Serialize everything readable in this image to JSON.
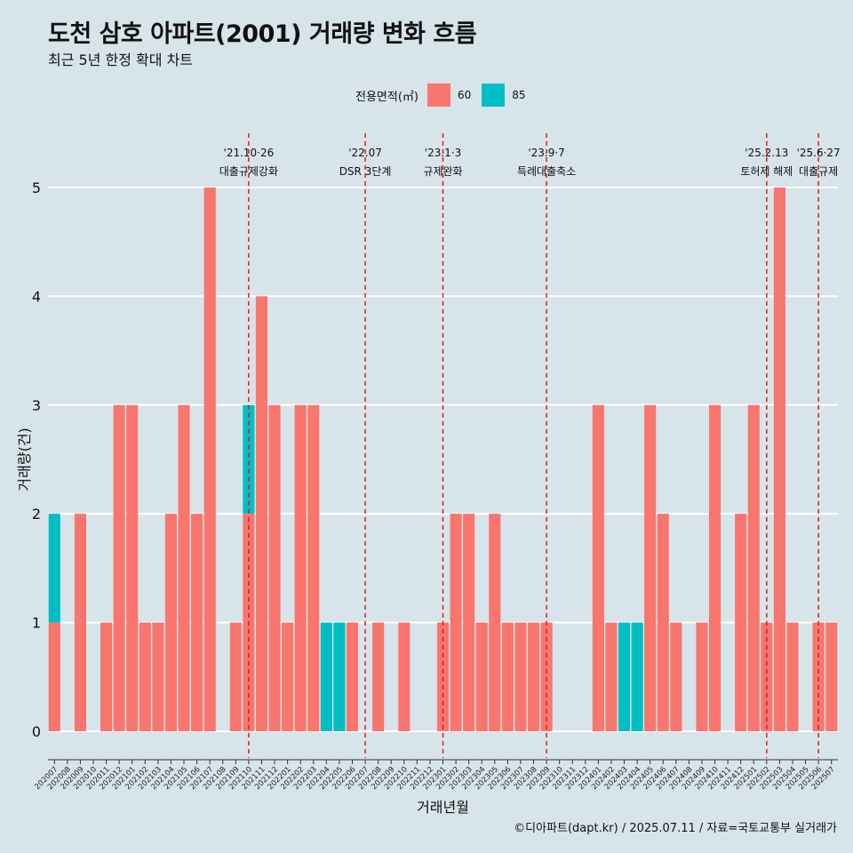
{
  "title": "도천 삼호 아파트(2001) 거래량 변화 흐름",
  "subtitle": "최근 5년 한정 확대 차트",
  "legend": {
    "title": "전용면적(㎡)",
    "items": [
      {
        "label": "60",
        "color": "#F8766D"
      },
      {
        "label": "85",
        "color": "#00BFC4"
      }
    ]
  },
  "caption": "©디아파트(dapt.kr) / 2025.07.11 / 자료=국토교통부 실거래가",
  "chart_data": {
    "type": "bar",
    "xlabel": "거래년월",
    "ylabel": "거래량(건)",
    "ylim": [
      0,
      5.5
    ],
    "yticks": [
      0,
      1,
      2,
      3,
      4,
      5
    ],
    "grid": true,
    "categories": [
      "202007",
      "202008",
      "202009",
      "202010",
      "202011",
      "202012",
      "202101",
      "202102",
      "202103",
      "202104",
      "202105",
      "202106",
      "202107",
      "202108",
      "202109",
      "202110",
      "202111",
      "202112",
      "202201",
      "202202",
      "202203",
      "202204",
      "202205",
      "202206",
      "202207",
      "202208",
      "202209",
      "202210",
      "202211",
      "202212",
      "202301",
      "202302",
      "202303",
      "202304",
      "202305",
      "202306",
      "202307",
      "202308",
      "202309",
      "202310",
      "202311",
      "202312",
      "202401",
      "202402",
      "202403",
      "202404",
      "202405",
      "202406",
      "202407",
      "202408",
      "202409",
      "202410",
      "202411",
      "202412",
      "202501",
      "202502",
      "202503",
      "202504",
      "202505",
      "202506",
      "202507"
    ],
    "series": [
      {
        "name": "60",
        "color": "#F8766D",
        "values": [
          1,
          0,
          2,
          0,
          1,
          3,
          3,
          1,
          1,
          2,
          3,
          2,
          5,
          0,
          1,
          2,
          4,
          3,
          1,
          3,
          3,
          0,
          0,
          1,
          0,
          1,
          0,
          1,
          0,
          0,
          1,
          2,
          2,
          1,
          2,
          1,
          1,
          1,
          1,
          0,
          0,
          0,
          3,
          1,
          0,
          0,
          3,
          2,
          1,
          0,
          1,
          3,
          0,
          2,
          3,
          1,
          5,
          1,
          0,
          1,
          1
        ]
      },
      {
        "name": "85",
        "color": "#00BFC4",
        "values": [
          1,
          0,
          0,
          0,
          0,
          0,
          0,
          0,
          0,
          0,
          0,
          0,
          0,
          0,
          0,
          1,
          0,
          0,
          0,
          0,
          0,
          1,
          1,
          0,
          0,
          0,
          0,
          0,
          0,
          0,
          0,
          0,
          0,
          0,
          0,
          0,
          0,
          0,
          0,
          0,
          0,
          0,
          0,
          0,
          1,
          1,
          0,
          0,
          0,
          0,
          0,
          0,
          0,
          0,
          0,
          0,
          0,
          0,
          0,
          0,
          0
        ]
      }
    ],
    "events": [
      {
        "month": "202110",
        "date": "'21.10·26",
        "label": "대출규제강화"
      },
      {
        "month": "202207",
        "date": "'22.07",
        "label": "DSR 3단계"
      },
      {
        "month": "202301",
        "date": "'23.1·3",
        "label": "규제완화"
      },
      {
        "month": "202309",
        "date": "'23.9·7",
        "label": "특례대출축소"
      },
      {
        "month": "202502",
        "date": "'25.2.13",
        "label": "토허제 해제"
      },
      {
        "month": "202506",
        "date": "'25.6·27",
        "label": "대출규제"
      }
    ]
  }
}
